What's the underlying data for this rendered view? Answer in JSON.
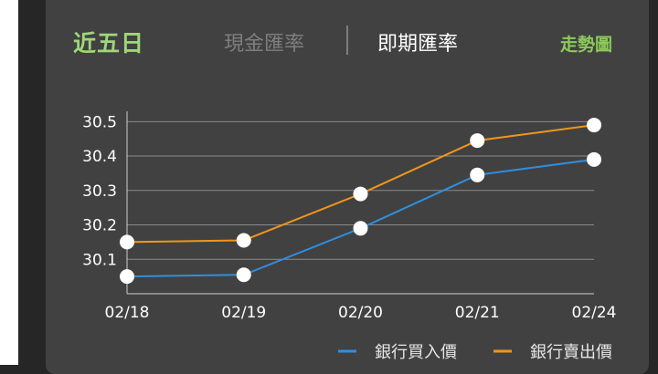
{
  "header": {
    "title": "近五日",
    "tab_cash": "現金匯率",
    "tab_spot": "即期匯率",
    "trend_link": "走勢圖"
  },
  "colors": {
    "buy": "#2f8ee0",
    "sell": "#f0961a",
    "title": "#9fd67a",
    "accent": "#8ccb57"
  },
  "chart_data": {
    "type": "line",
    "categories": [
      "02/18",
      "02/19",
      "02/20",
      "02/21",
      "02/24"
    ],
    "y_ticks": [
      30.1,
      30.2,
      30.3,
      30.4,
      30.5
    ],
    "ylim": [
      30.0,
      30.53
    ],
    "series": [
      {
        "name": "銀行買入價",
        "values": [
          30.05,
          30.055,
          30.19,
          30.345,
          30.39
        ]
      },
      {
        "name": "銀行賣出價",
        "values": [
          30.15,
          30.155,
          30.29,
          30.445,
          30.49
        ]
      }
    ],
    "legend_position": "bottom-right",
    "grid": true
  }
}
